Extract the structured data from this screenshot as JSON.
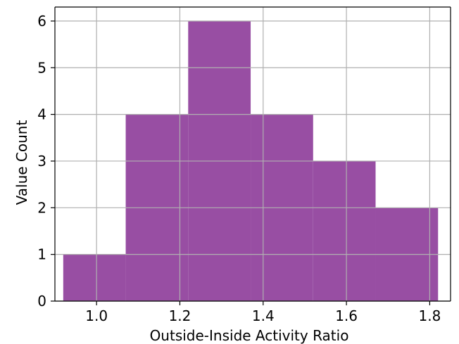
{
  "chart_data": {
    "type": "bar",
    "subtype": "histogram",
    "xlabel": "Outside-Inside Activity Ratio",
    "ylabel": "Value Count",
    "xlim": [
      0.9,
      1.85
    ],
    "ylim": [
      0,
      6.3
    ],
    "grid": true,
    "bar_color": "#984ea3",
    "bins": [
      {
        "x0": 0.92,
        "x1": 1.07,
        "count": 1
      },
      {
        "x0": 1.07,
        "x1": 1.22,
        "count": 4
      },
      {
        "x0": 1.22,
        "x1": 1.37,
        "count": 6
      },
      {
        "x0": 1.37,
        "x1": 1.52,
        "count": 4
      },
      {
        "x0": 1.52,
        "x1": 1.67,
        "count": 3
      },
      {
        "x0": 1.67,
        "x1": 1.82,
        "count": 2
      }
    ],
    "x_ticks": [
      1.0,
      1.2,
      1.4,
      1.6,
      1.8
    ],
    "x_tick_labels": [
      "1.0",
      "1.2",
      "1.4",
      "1.6",
      "1.8"
    ],
    "y_ticks": [
      0,
      1,
      2,
      3,
      4,
      5,
      6
    ],
    "y_tick_labels": [
      "0",
      "1",
      "2",
      "3",
      "4",
      "5",
      "6"
    ]
  }
}
